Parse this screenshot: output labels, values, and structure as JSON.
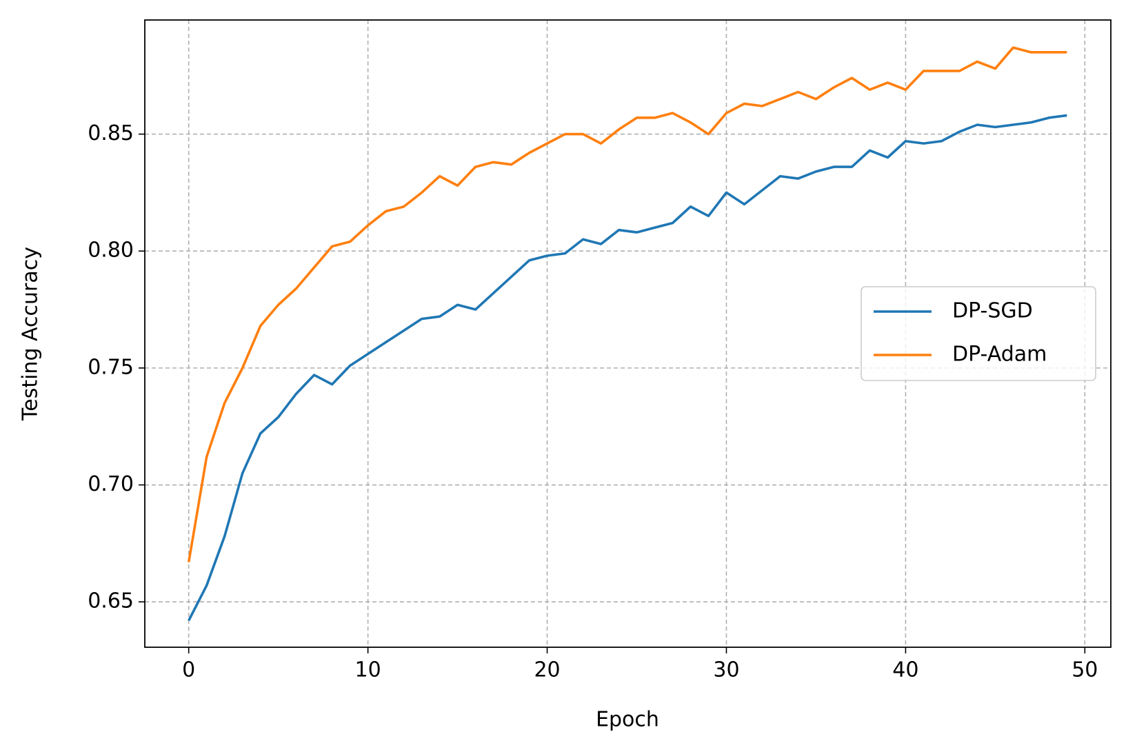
{
  "chart_data": {
    "type": "line",
    "x_label": "Epoch",
    "y_label": "Testing Accuracy",
    "x": [
      0,
      1,
      2,
      3,
      4,
      5,
      6,
      7,
      8,
      9,
      10,
      11,
      12,
      13,
      14,
      15,
      16,
      17,
      18,
      19,
      20,
      21,
      22,
      23,
      24,
      25,
      26,
      27,
      28,
      29,
      30,
      31,
      32,
      33,
      34,
      35,
      36,
      37,
      38,
      39,
      40,
      41,
      42,
      43,
      44,
      45,
      46,
      47,
      48,
      49
    ],
    "series": [
      {
        "name": "DP-SGD",
        "color": "#1f77b4",
        "values": [
          0.642,
          0.657,
          0.678,
          0.705,
          0.722,
          0.729,
          0.739,
          0.747,
          0.743,
          0.751,
          0.756,
          0.761,
          0.766,
          0.771,
          0.772,
          0.777,
          0.775,
          0.782,
          0.789,
          0.796,
          0.798,
          0.799,
          0.805,
          0.803,
          0.809,
          0.808,
          0.81,
          0.812,
          0.819,
          0.815,
          0.825,
          0.82,
          0.826,
          0.832,
          0.831,
          0.834,
          0.836,
          0.836,
          0.843,
          0.84,
          0.847,
          0.846,
          0.847,
          0.851,
          0.854,
          0.853,
          0.854,
          0.855,
          0.857,
          0.858
        ]
      },
      {
        "name": "DP-Adam",
        "color": "#ff7f0e",
        "values": [
          0.667,
          0.712,
          0.735,
          0.75,
          0.768,
          0.777,
          0.784,
          0.793,
          0.802,
          0.804,
          0.811,
          0.817,
          0.819,
          0.825,
          0.832,
          0.828,
          0.836,
          0.838,
          0.837,
          0.842,
          0.846,
          0.85,
          0.85,
          0.846,
          0.852,
          0.857,
          0.857,
          0.859,
          0.855,
          0.85,
          0.859,
          0.863,
          0.862,
          0.865,
          0.868,
          0.865,
          0.87,
          0.874,
          0.869,
          0.872,
          0.869,
          0.877,
          0.877,
          0.877,
          0.881,
          0.878,
          0.887,
          0.885,
          0.885,
          0.885
        ]
      }
    ],
    "xlim": [
      -2.45,
      51.45
    ],
    "ylim": [
      0.6306,
      0.8988
    ],
    "xticks": [
      0,
      10,
      20,
      30,
      40,
      50
    ],
    "yticks": [
      0.65,
      {
        "value": 0.7,
        "label": "0.70"
      },
      0.75,
      {
        "value": 0.8,
        "label": "0.80"
      },
      0.85
    ],
    "grid": true,
    "legend": "center right"
  }
}
